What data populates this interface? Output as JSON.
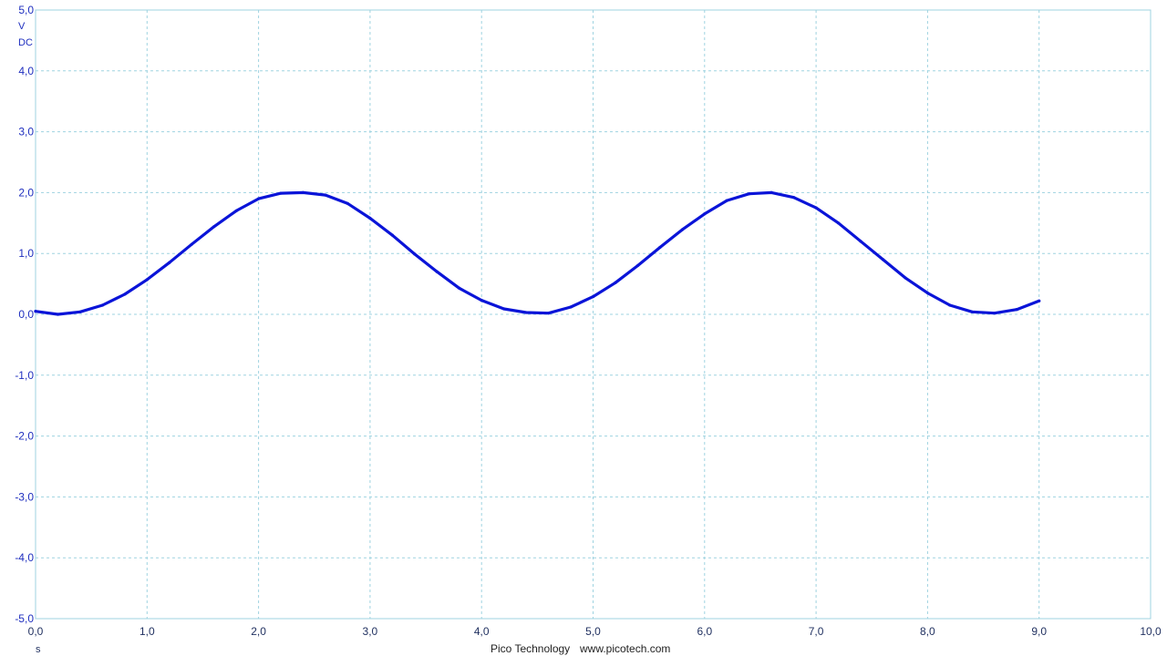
{
  "chart_data": {
    "type": "line",
    "title": "",
    "xlabel": "s",
    "ylabel": "V",
    "y_coupling": "DC",
    "xlim": [
      0,
      10
    ],
    "ylim": [
      -5,
      5
    ],
    "x_ticks": [
      "0,0",
      "1,0",
      "2,0",
      "3,0",
      "4,0",
      "5,0",
      "6,0",
      "7,0",
      "8,0",
      "9,0",
      "10,0"
    ],
    "y_ticks": [
      "5,0",
      "4,0",
      "3,0",
      "2,0",
      "1,0",
      "0,0",
      "-1,0",
      "-2,0",
      "-3,0",
      "-4,0",
      "-5,0"
    ],
    "grid": true,
    "series": [
      {
        "color": "#0a14d8",
        "x": [
          0,
          0.2,
          0.4,
          0.6,
          0.8,
          1.0,
          1.2,
          1.4,
          1.6,
          1.8,
          2.0,
          2.2,
          2.4,
          2.6,
          2.8,
          3.0,
          3.2,
          3.4,
          3.6,
          3.8,
          4.0,
          4.2,
          4.4,
          4.6,
          4.8,
          5.0,
          5.2,
          5.4,
          5.6,
          5.8,
          6.0,
          6.2,
          6.4,
          6.6,
          6.8,
          7.0,
          7.2,
          7.4,
          7.6,
          7.8,
          8.0,
          8.2,
          8.4,
          8.6,
          8.8,
          9.0
        ],
        "y": [
          0.05,
          0.0,
          0.04,
          0.15,
          0.33,
          0.57,
          0.85,
          1.15,
          1.44,
          1.7,
          1.9,
          1.99,
          2.0,
          1.96,
          1.82,
          1.58,
          1.3,
          0.99,
          0.7,
          0.43,
          0.23,
          0.09,
          0.03,
          0.02,
          0.12,
          0.29,
          0.52,
          0.8,
          1.1,
          1.39,
          1.65,
          1.87,
          1.98,
          2.0,
          1.92,
          1.75,
          1.5,
          1.2,
          0.9,
          0.6,
          0.35,
          0.15,
          0.04,
          0.02,
          0.08,
          0.22
        ]
      }
    ]
  },
  "footer": {
    "brand": "Pico Technology",
    "url": "www.picotech.com"
  }
}
